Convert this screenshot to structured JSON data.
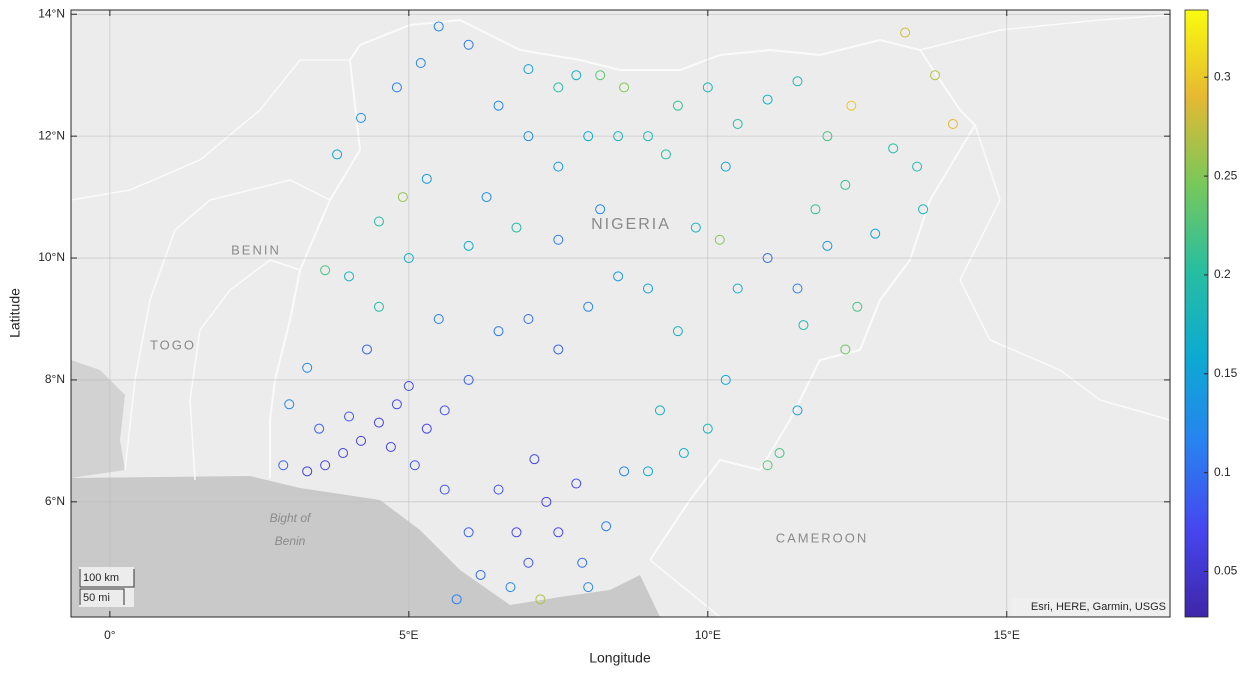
{
  "chart_data": {
    "type": "geoscatter",
    "xlabel": "Longitude",
    "ylabel": "Latitude",
    "xlim": [
      -0.65,
      17.73
    ],
    "ylim": [
      4.11,
      14.07
    ],
    "xticks": [
      {
        "value": 0,
        "label": "0°"
      },
      {
        "value": 5,
        "label": "5°E"
      },
      {
        "value": 10,
        "label": "10°E"
      },
      {
        "value": 15,
        "label": "15°E"
      }
    ],
    "yticks": [
      {
        "value": 6,
        "label": "6°N"
      },
      {
        "value": 8,
        "label": "8°N"
      },
      {
        "value": 10,
        "label": "10°N"
      },
      {
        "value": 12,
        "label": "12°N"
      },
      {
        "value": 14,
        "label": "14°N"
      }
    ],
    "clim": [
      0.027,
      0.334
    ],
    "cticks": [
      0.05,
      0.1,
      0.15,
      0.2,
      0.25,
      0.3
    ],
    "colormap": "parula",
    "grid": true,
    "map_labels": [
      "BENIN",
      "TOGO",
      "NIGERIA",
      "CAMEROON",
      "Bight of",
      "Benin"
    ],
    "scalebar": [
      "100 km",
      "50 mi"
    ],
    "attribution": "Esri, HERE, Garmin, USGS",
    "lon": [
      3.3,
      3.6,
      3.9,
      4.2,
      4.5,
      4.8,
      5.0,
      4.0,
      3.5,
      2.9,
      5.3,
      5.6,
      4.7,
      5.1,
      5.6,
      3.0,
      3.3,
      4.3,
      6.8,
      7.0,
      7.3,
      7.5,
      7.8,
      7.9,
      8.3,
      6.5,
      6.2,
      6.0,
      7.1,
      8.6,
      7.2,
      6.7,
      5.8,
      8.0,
      6.0,
      6.5,
      7.0,
      7.5,
      8.0,
      8.5,
      9.0,
      9.5,
      9.2,
      9.6,
      10.0,
      9.0,
      5.5,
      4.5,
      4.0,
      3.6,
      5.0,
      6.0,
      6.8,
      7.5,
      8.2,
      10.5,
      11.0,
      11.5,
      12.0,
      12.5,
      12.3,
      11.6,
      11.2,
      11.0,
      11.5,
      10.3,
      3.8,
      4.2,
      4.8,
      5.2,
      5.5,
      6.0,
      5.3,
      6.5,
      7.0,
      7.5,
      8.0,
      8.5,
      8.6,
      9.0,
      9.5,
      9.3,
      10.0,
      10.5,
      11.0,
      10.3,
      11.5,
      12.0,
      12.3,
      12.4,
      13.1,
      13.5,
      13.3,
      13.8,
      14.1,
      13.6,
      12.8,
      11.8,
      7.0,
      7.8,
      8.2,
      4.5,
      4.9,
      7.5,
      6.3,
      9.8,
      10.2
    ],
    "lat": [
      6.5,
      6.6,
      6.8,
      7.0,
      7.3,
      7.6,
      7.9,
      7.4,
      7.2,
      6.6,
      7.2,
      7.5,
      6.9,
      6.6,
      6.2,
      7.6,
      8.2,
      8.5,
      5.5,
      5.0,
      6.0,
      5.5,
      6.3,
      5.0,
      5.6,
      6.2,
      4.8,
      5.5,
      6.7,
      6.5,
      4.4,
      4.6,
      4.4,
      4.6,
      8.0,
      8.8,
      9.0,
      8.5,
      9.2,
      9.7,
      9.5,
      8.8,
      7.5,
      6.8,
      7.2,
      6.5,
      9.0,
      9.2,
      9.7,
      9.8,
      10.0,
      10.2,
      10.5,
      10.3,
      10.8,
      9.5,
      10.0,
      9.5,
      10.2,
      9.2,
      8.5,
      8.9,
      6.8,
      6.6,
      7.5,
      8.0,
      11.7,
      12.3,
      12.8,
      13.2,
      13.8,
      13.5,
      11.3,
      12.5,
      12.0,
      11.5,
      12.0,
      12.0,
      12.8,
      12.0,
      12.5,
      11.7,
      12.8,
      12.2,
      12.6,
      11.5,
      12.9,
      12.0,
      11.2,
      12.5,
      11.8,
      11.5,
      13.7,
      13.0,
      12.2,
      10.8,
      10.4,
      10.8,
      13.1,
      13.0,
      13.0,
      10.6,
      11.0,
      12.8,
      11.0,
      10.5,
      10.3
    ],
    "values": [
      0.06,
      0.065,
      0.07,
      0.06,
      0.065,
      0.07,
      0.075,
      0.08,
      0.09,
      0.09,
      0.07,
      0.08,
      0.07,
      0.08,
      0.08,
      0.12,
      0.12,
      0.09,
      0.07,
      0.08,
      0.065,
      0.07,
      0.075,
      0.1,
      0.11,
      0.08,
      0.1,
      0.09,
      0.07,
      0.12,
      0.27,
      0.12,
      0.11,
      0.12,
      0.09,
      0.11,
      0.1,
      0.09,
      0.12,
      0.14,
      0.15,
      0.18,
      0.17,
      0.17,
      0.18,
      0.16,
      0.11,
      0.2,
      0.18,
      0.22,
      0.17,
      0.16,
      0.19,
      0.11,
      0.12,
      0.17,
      0.1,
      0.11,
      0.14,
      0.22,
      0.24,
      0.19,
      0.22,
      0.23,
      0.15,
      0.16,
      0.15,
      0.13,
      0.11,
      0.12,
      0.12,
      0.11,
      0.14,
      0.12,
      0.13,
      0.14,
      0.16,
      0.18,
      0.25,
      0.19,
      0.21,
      0.2,
      0.18,
      0.2,
      0.17,
      0.15,
      0.19,
      0.22,
      0.21,
      0.3,
      0.2,
      0.19,
      0.28,
      0.27,
      0.29,
      0.18,
      0.15,
      0.21,
      0.15,
      0.17,
      0.23,
      0.2,
      0.26,
      0.2,
      0.13,
      0.18,
      0.25
    ]
  }
}
